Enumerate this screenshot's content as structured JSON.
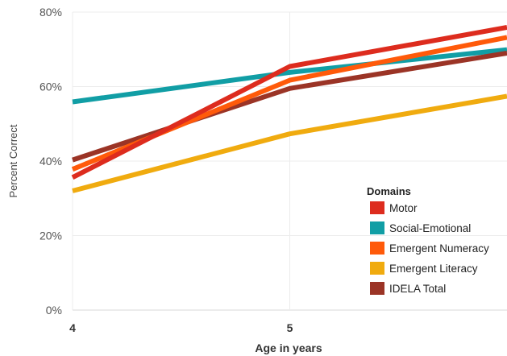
{
  "chart_data": {
    "type": "line",
    "xlabel": "Age in years",
    "ylabel": "Percent Correct",
    "x_ticks": [
      "4",
      "5"
    ],
    "y_ticks": [
      "0%",
      "20%",
      "40%",
      "60%",
      "80%"
    ],
    "x_range": [
      4,
      6
    ],
    "ylim": [
      0,
      80
    ],
    "grid": true,
    "legend": {
      "title": "Domains",
      "position": "bottom-right"
    },
    "series": [
      {
        "name": "Social-Emotional",
        "color": "#119ea5",
        "x": [
          4,
          5,
          6
        ],
        "y": [
          55.9,
          63.8,
          69.9
        ]
      },
      {
        "name": "Emergent Literacy",
        "color": "#f0ab0f",
        "x": [
          4,
          5,
          6
        ],
        "y": [
          32.0,
          47.3,
          57.4
        ]
      },
      {
        "name": "IDELA Total",
        "color": "#9b3426",
        "x": [
          4,
          5,
          6
        ],
        "y": [
          40.3,
          59.5,
          69.0
        ]
      },
      {
        "name": "Emergent Numeracy",
        "color": "#ff5a0a",
        "x": [
          4,
          5,
          6
        ],
        "y": [
          37.8,
          61.7,
          73.2
        ]
      },
      {
        "name": "Motor",
        "color": "#dd2c1e",
        "x": [
          4,
          5,
          6
        ],
        "y": [
          35.6,
          65.4,
          75.9
        ]
      }
    ],
    "legend_order": [
      "Motor",
      "Social-Emotional",
      "Emergent Numeracy",
      "Emergent Literacy",
      "IDELA Total"
    ]
  }
}
